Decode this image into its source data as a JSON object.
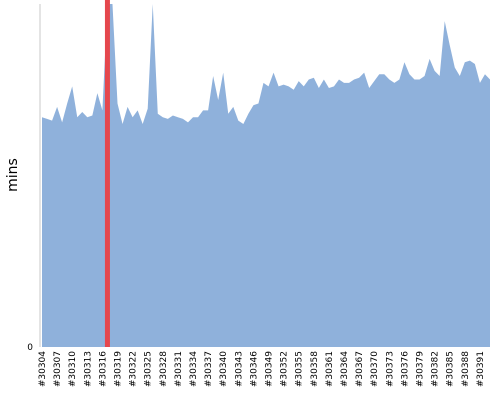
{
  "chart_data": {
    "type": "area",
    "title": "",
    "xlabel": "",
    "ylabel": "mins",
    "ylim": [
      0,
      100
    ],
    "y_ticks": [
      0
    ],
    "grid": false,
    "legend": "none",
    "series_color": "#8fb1db",
    "marker_color": "#e5474d",
    "marker_at": "#30317",
    "categories": [
      "#30304",
      "#30305",
      "#30306",
      "#30307",
      "#30308",
      "#30309",
      "#30310",
      "#30311",
      "#30312",
      "#30313",
      "#30314",
      "#30315",
      "#30316",
      "#30317",
      "#30318",
      "#30319",
      "#30320",
      "#30321",
      "#30322",
      "#30323",
      "#30324",
      "#30325",
      "#30326",
      "#30327",
      "#30328",
      "#30329",
      "#30330",
      "#30331",
      "#30332",
      "#30333",
      "#30334",
      "#30335",
      "#30336",
      "#30337",
      "#30338",
      "#30339",
      "#30340",
      "#30341",
      "#30342",
      "#30343",
      "#30344",
      "#30345",
      "#30346",
      "#30347",
      "#30348",
      "#30349",
      "#30350",
      "#30351",
      "#30352",
      "#30353",
      "#30354",
      "#30355",
      "#30356",
      "#30357",
      "#30358",
      "#30359",
      "#30360",
      "#30361",
      "#30362",
      "#30363",
      "#30364",
      "#30365",
      "#30366",
      "#30367",
      "#30368",
      "#30369",
      "#30370",
      "#30371",
      "#30372",
      "#30373",
      "#30374",
      "#30375",
      "#30376",
      "#30377",
      "#30378",
      "#30379",
      "#30380",
      "#30381",
      "#30382",
      "#30383",
      "#30384",
      "#30385",
      "#30386",
      "#30387",
      "#30388",
      "#30389",
      "#30390",
      "#30391",
      "#30392",
      "#30393"
    ],
    "tick_labels": [
      "#30304",
      "#30307",
      "#30310",
      "#30313",
      "#30316",
      "#30319",
      "#30322",
      "#30325",
      "#30328",
      "#30331",
      "#30334",
      "#30337",
      "#30340",
      "#30343",
      "#30346",
      "#30349",
      "#30352",
      "#30355",
      "#30358",
      "#30361",
      "#30364",
      "#30367",
      "#30370",
      "#30373",
      "#30376",
      "#30379",
      "#30382",
      "#30385",
      "#30388",
      "#30391"
    ],
    "values": [
      67,
      66.5,
      66,
      70,
      65.5,
      71,
      76,
      67,
      68.5,
      67,
      67.5,
      74,
      69,
      100,
      100,
      71,
      65,
      70,
      67,
      69,
      65,
      69.5,
      100,
      68,
      67,
      66.5,
      67.5,
      67,
      66.5,
      65.5,
      67,
      67,
      69,
      69,
      79,
      72,
      80,
      68,
      70,
      66,
      65,
      68,
      70.5,
      71,
      77,
      76,
      80,
      76,
      76.5,
      76,
      75,
      77.5,
      76,
      78,
      78.5,
      75.5,
      78,
      75.5,
      76,
      78,
      77,
      77,
      78,
      78.5,
      80,
      75.5,
      77.5,
      79.5,
      79.5,
      78,
      77,
      78,
      83,
      79.5,
      78,
      78,
      79,
      84,
      80.5,
      79,
      95,
      88,
      81.5,
      79,
      83,
      83.5,
      82.5,
      77,
      79.5,
      78
    ]
  }
}
